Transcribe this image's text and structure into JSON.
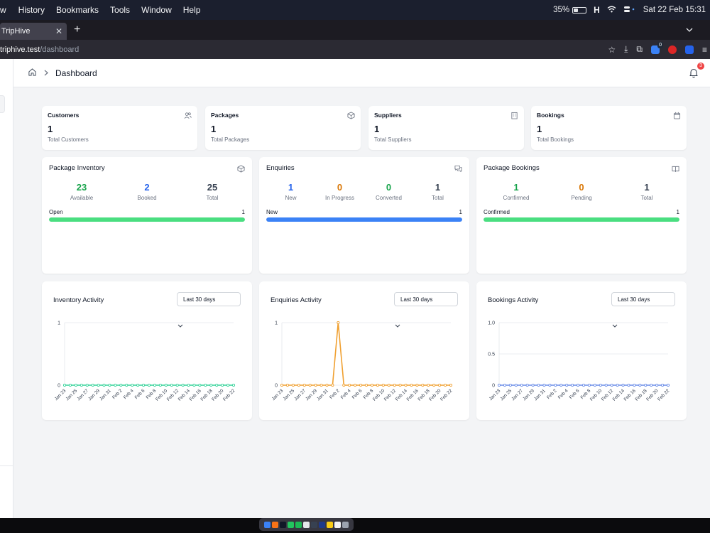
{
  "menubar": {
    "menus": [
      "w",
      "History",
      "Bookmarks",
      "Tools",
      "Window",
      "Help"
    ],
    "battery": "35%",
    "datetime": "Sat 22 Feb  15:31"
  },
  "browser": {
    "tab_title": "TripHive",
    "url_host": "triphive.test",
    "url_path": "/dashboard"
  },
  "breadcrumb": {
    "current": "Dashboard"
  },
  "notifications": {
    "count": "3"
  },
  "stats": [
    {
      "label": "Customers",
      "value": "1",
      "sub": "Total Customers",
      "icon": "users-icon"
    },
    {
      "label": "Packages",
      "value": "1",
      "sub": "Total Packages",
      "icon": "package-icon"
    },
    {
      "label": "Suppliers",
      "value": "1",
      "sub": "Total Suppliers",
      "icon": "building-icon"
    },
    {
      "label": "Bookings",
      "value": "1",
      "sub": "Total Bookings",
      "icon": "calendar-icon"
    }
  ],
  "summaries": [
    {
      "title": "Package Inventory",
      "icon": "package-icon",
      "metrics": [
        {
          "num": "23",
          "cap": "Available",
          "color": "#16a34a"
        },
        {
          "num": "2",
          "cap": "Booked",
          "color": "#2563eb"
        },
        {
          "num": "25",
          "cap": "Total",
          "color": "#374151"
        }
      ],
      "bar": {
        "label": "Open",
        "count": "1",
        "color": "#4ade80",
        "fraction": 1
      }
    },
    {
      "title": "Enquiries",
      "icon": "chat-icon",
      "metrics": [
        {
          "num": "1",
          "cap": "New",
          "color": "#2563eb"
        },
        {
          "num": "0",
          "cap": "In Progress",
          "color": "#d97706"
        },
        {
          "num": "0",
          "cap": "Converted",
          "color": "#16a34a"
        },
        {
          "num": "1",
          "cap": "Total",
          "color": "#374151"
        }
      ],
      "bar": {
        "label": "New",
        "count": "1",
        "color": "#3b82f6",
        "fraction": 1
      }
    },
    {
      "title": "Package Bookings",
      "icon": "book-open-icon",
      "metrics": [
        {
          "num": "1",
          "cap": "Confirmed",
          "color": "#16a34a"
        },
        {
          "num": "0",
          "cap": "Pending",
          "color": "#d97706"
        },
        {
          "num": "1",
          "cap": "Total",
          "color": "#374151"
        }
      ],
      "bar": {
        "label": "Confirmed",
        "count": "1",
        "color": "#4ade80",
        "fraction": 1
      }
    }
  ],
  "activity_select": "Last 30 days",
  "chart_data": [
    {
      "type": "line",
      "title": "Inventory Activity",
      "color": "#34d399",
      "x_tick_labels": [
        "Jan 23",
        "Jan 25",
        "Jan 27",
        "Jan 29",
        "Jan 31",
        "Feb 2",
        "Feb 4",
        "Feb 6",
        "Feb 8",
        "Feb 10",
        "Feb 12",
        "Feb 14",
        "Feb 16",
        "Feb 18",
        "Feb 20",
        "Feb 22"
      ],
      "y_tick_labels": [
        "0",
        "1"
      ],
      "ylim": [
        0,
        1
      ],
      "values": [
        0,
        0,
        0,
        0,
        0,
        0,
        0,
        0,
        0,
        0,
        0,
        0,
        0,
        0,
        0,
        0,
        0,
        0,
        0,
        0,
        0,
        0,
        0,
        0,
        0,
        0,
        0,
        0,
        0,
        0,
        0
      ]
    },
    {
      "type": "line",
      "title": "Enquiries Activity",
      "color": "#f0a030",
      "x_tick_labels": [
        "Jan 23",
        "Jan 25",
        "Jan 27",
        "Jan 29",
        "Jan 31",
        "Feb 2",
        "Feb 4",
        "Feb 6",
        "Feb 8",
        "Feb 10",
        "Feb 12",
        "Feb 14",
        "Feb 16",
        "Feb 18",
        "Feb 20",
        "Feb 22"
      ],
      "y_tick_labels": [
        "0",
        "1"
      ],
      "ylim": [
        0,
        1
      ],
      "values": [
        0,
        0,
        0,
        0,
        0,
        0,
        0,
        0,
        0,
        0,
        1,
        0,
        0,
        0,
        0,
        0,
        0,
        0,
        0,
        0,
        0,
        0,
        0,
        0,
        0,
        0,
        0,
        0,
        0,
        0,
        0
      ]
    },
    {
      "type": "line",
      "title": "Bookings Activity",
      "color": "#6b8de8",
      "x_tick_labels": [
        "Jan 23",
        "Jan 25",
        "Jan 27",
        "Jan 29",
        "Jan 31",
        "Feb 2",
        "Feb 4",
        "Feb 6",
        "Feb 8",
        "Feb 10",
        "Feb 12",
        "Feb 14",
        "Feb 16",
        "Feb 18",
        "Feb 20",
        "Feb 22"
      ],
      "y_tick_labels": [
        "0",
        "0.5",
        "1.0"
      ],
      "ylim": [
        0,
        1
      ],
      "values": [
        0,
        0,
        0,
        0,
        0,
        0,
        0,
        0,
        0,
        0,
        0,
        0,
        0,
        0,
        0,
        0,
        0,
        0,
        0,
        0,
        0,
        0,
        0,
        0,
        0,
        0,
        0,
        0,
        0,
        0,
        0
      ]
    }
  ]
}
